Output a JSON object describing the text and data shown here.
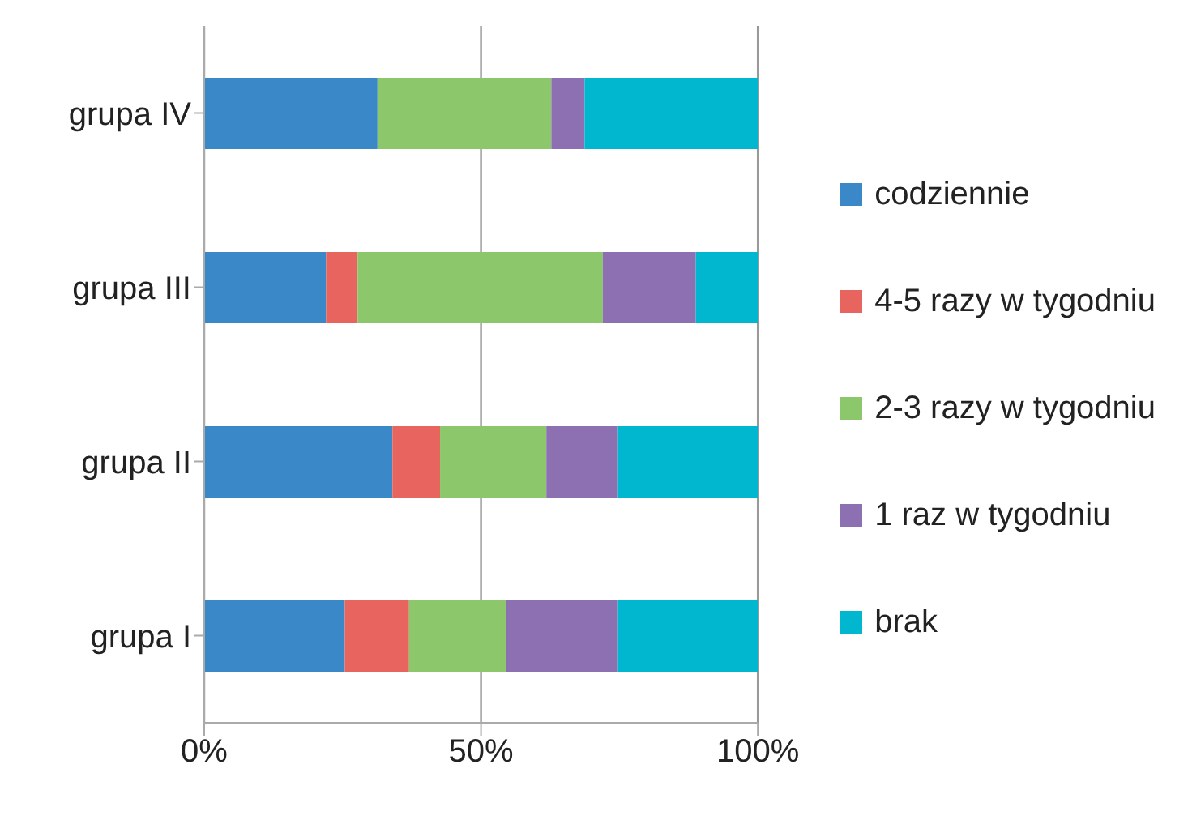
{
  "chart_data": {
    "type": "bar",
    "orientation": "horizontal",
    "stacked": true,
    "categories": [
      "grupa IV",
      "grupa III",
      "grupa II",
      "grupa I"
    ],
    "series": [
      {
        "name": "codziennie",
        "color": "#3a88c8",
        "values": [
          31.3,
          22,
          34,
          25.4
        ]
      },
      {
        "name": "4-5 razy w tygodniu",
        "color": "#e8645e",
        "values": [
          0,
          5.7,
          8.6,
          11.6
        ]
      },
      {
        "name": "2-3 razy w tygodniu",
        "color": "#8dc76c",
        "values": [
          31.4,
          44.3,
          19.2,
          17.6
        ]
      },
      {
        "name": "1 raz w tygodniu",
        "color": "#8c70b2",
        "values": [
          6,
          16.8,
          12.8,
          20
        ]
      },
      {
        "name": "brak",
        "color": "#00b7cf",
        "values": [
          31.3,
          11.2,
          25.4,
          25.4
        ]
      }
    ],
    "xlim": [
      0,
      100
    ],
    "xticks": [
      {
        "value": 0,
        "label": "0%"
      },
      {
        "value": 50,
        "label": "50%"
      },
      {
        "value": 100,
        "label": "100%"
      }
    ],
    "grid": "x",
    "legend": "right"
  }
}
